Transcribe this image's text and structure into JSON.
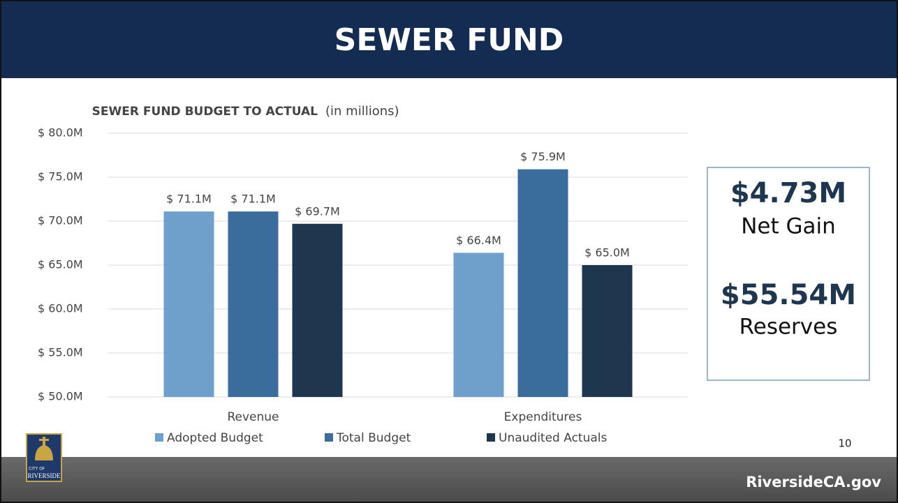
{
  "header": {
    "title": "SEWER FUND"
  },
  "chart_data": {
    "type": "bar",
    "title": "SEWER FUND BUDGET TO ACTUAL",
    "subtitle": "(in millions)",
    "categories": [
      "Revenue",
      "Expenditures"
    ],
    "series": [
      {
        "name": "Adopted Budget",
        "color": "#6fa0cb",
        "values": [
          71.1,
          66.4
        ],
        "value_labels": [
          "$ 71.1M",
          "$ 66.4M"
        ]
      },
      {
        "name": "Total Budget",
        "color": "#3a6d9b",
        "values": [
          71.1,
          75.9
        ],
        "value_labels": [
          "$ 71.1M",
          "$ 75.9M"
        ]
      },
      {
        "name": "Unaudited Actuals",
        "color": "#1f364f",
        "values": [
          69.7,
          65.0
        ],
        "value_labels": [
          "$ 69.7M",
          "$ 65.0M"
        ]
      }
    ],
    "ylim": [
      50,
      80
    ],
    "yticks": [
      {
        "value": 50,
        "label": "$ 50.0M"
      },
      {
        "value": 55,
        "label": "$ 55.0M"
      },
      {
        "value": 60,
        "label": "$ 60.0M"
      },
      {
        "value": 65,
        "label": "$ 65.0M"
      },
      {
        "value": 70,
        "label": "$ 70.0M"
      },
      {
        "value": 75,
        "label": "$ 75.0M"
      },
      {
        "value": 80,
        "label": "$ 80.0M"
      }
    ],
    "grid": true,
    "legend": "bottom"
  },
  "callout": {
    "net_gain_value": "$4.73M",
    "net_gain_label": "Net Gain",
    "reserves_value": "$55.54M",
    "reserves_label": "Reserves"
  },
  "page_number": "10",
  "logo": {
    "top": "CITY OF",
    "bottom": "RIVERSIDE"
  },
  "footer": {
    "url": "RiversideCA.gov"
  }
}
